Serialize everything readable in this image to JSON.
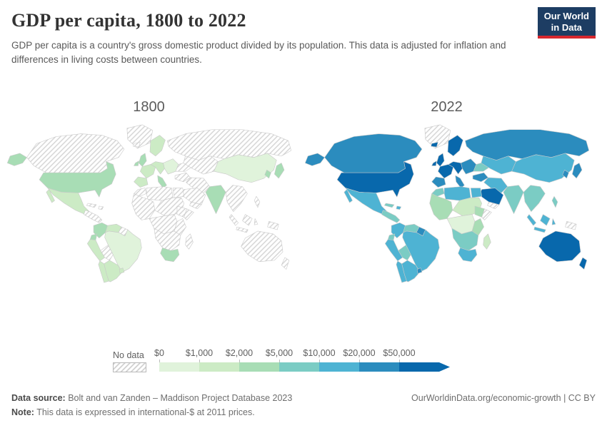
{
  "header": {
    "title": "GDP per capita, 1800 to 2022",
    "subtitle": "GDP per capita is a country's gross domestic product divided by its population. This data is adjusted for inflation and differences in living costs between countries.",
    "logo": {
      "line1": "Our World",
      "line2": "in Data",
      "bg_color": "#1d3d63",
      "accent_color": "#d7272e"
    }
  },
  "maps": [
    {
      "label": "1800"
    },
    {
      "label": "2022"
    }
  ],
  "legend": {
    "no_data_label": "No data",
    "tick_labels": [
      "$0",
      "$1,000",
      "$2,000",
      "$5,000",
      "$10,000",
      "$20,000",
      "$50,000"
    ],
    "colors": [
      "#e0f3db",
      "#ccebc5",
      "#a8ddb5",
      "#7bccc4",
      "#4eb3d3",
      "#2b8cbe",
      "#0868ac"
    ],
    "hatch_color": "#d2d2d2",
    "border_color": "#c9c9c9"
  },
  "chart_data": {
    "type": "heatmap",
    "subtype": "choropleth-world-map-pair",
    "title": "GDP per capita, 1800 to 2022",
    "years": [
      "1800",
      "2022"
    ],
    "unit": "international-$ at 2011 prices",
    "buckets": [
      "$0-1,000",
      "$1,000-2,000",
      "$2,000-5,000",
      "$5,000-10,000",
      "$10,000-20,000",
      "$20,000-50,000",
      "$50,000+"
    ],
    "no_data_value": null,
    "values": {
      "alaska": [
        2,
        5
      ],
      "canada": [
        null,
        5
      ],
      "greenland": [
        null,
        null
      ],
      "usa": [
        2,
        6
      ],
      "mexico": [
        1,
        4
      ],
      "central_america": [
        null,
        3
      ],
      "cuba": [
        null,
        3
      ],
      "hispaniola": [
        null,
        4
      ],
      "colombia": [
        2,
        4
      ],
      "venezuela": [
        1,
        3
      ],
      "guianas": [
        null,
        5
      ],
      "brazil": [
        0,
        4
      ],
      "ecuador": [
        2,
        3
      ],
      "peru": [
        1,
        4
      ],
      "bolivia": [
        null,
        3
      ],
      "chile": [
        1,
        4
      ],
      "argentina": [
        1,
        4
      ],
      "uruguay": [
        1,
        5
      ],
      "iceland": [
        null,
        6
      ],
      "uk": [
        2,
        6
      ],
      "ireland": [
        2,
        6
      ],
      "scandinavia": [
        1,
        6
      ],
      "france": [
        1,
        6
      ],
      "germany_central": [
        1,
        6
      ],
      "iberia": [
        1,
        5
      ],
      "italy": [
        2,
        5
      ],
      "europe_east": [
        0,
        5
      ],
      "ukraine": [
        null,
        3
      ],
      "russia": [
        null,
        5
      ],
      "turkey": [
        null,
        5
      ],
      "morocco": [
        null,
        3
      ],
      "algeria_libya": [
        null,
        4
      ],
      "egypt": [
        null,
        4
      ],
      "west_africa": [
        null,
        2
      ],
      "sahel_sudan": [
        null,
        1
      ],
      "ethiopia": [
        null,
        2
      ],
      "somalia": [
        null,
        null
      ],
      "central_africa": [
        null,
        0
      ],
      "east_africa": [
        null,
        2
      ],
      "southern_africa": [
        null,
        3
      ],
      "south_africa": [
        2,
        4
      ],
      "madagascar": [
        null,
        1
      ],
      "central_asia": [
        null,
        4
      ],
      "middle_east": [
        null,
        4
      ],
      "saudi_arabia": [
        null,
        6
      ],
      "yemen": [
        null,
        null
      ],
      "india": [
        2,
        3
      ],
      "china": [
        0,
        4
      ],
      "korea": [
        2,
        5
      ],
      "japan": [
        2,
        5
      ],
      "se_asia": [
        null,
        3
      ],
      "sumatra": [
        null,
        4
      ],
      "borneo": [
        null,
        4
      ],
      "java": [
        null,
        4
      ],
      "sulawesi": [
        null,
        4
      ],
      "philippines": [
        null,
        3
      ],
      "new_guinea": [
        null,
        null
      ],
      "australia": [
        null,
        6
      ],
      "new_zealand": [
        null,
        6
      ]
    }
  },
  "footer": {
    "datasource_label": "Data source:",
    "datasource_value": "Bolt and van Zanden – Maddison Project Database 2023",
    "note_label": "Note:",
    "note_value": "This data is expressed in international-$ at 2011 prices.",
    "credit": "OurWorldinData.org/economic-growth | CC BY"
  }
}
